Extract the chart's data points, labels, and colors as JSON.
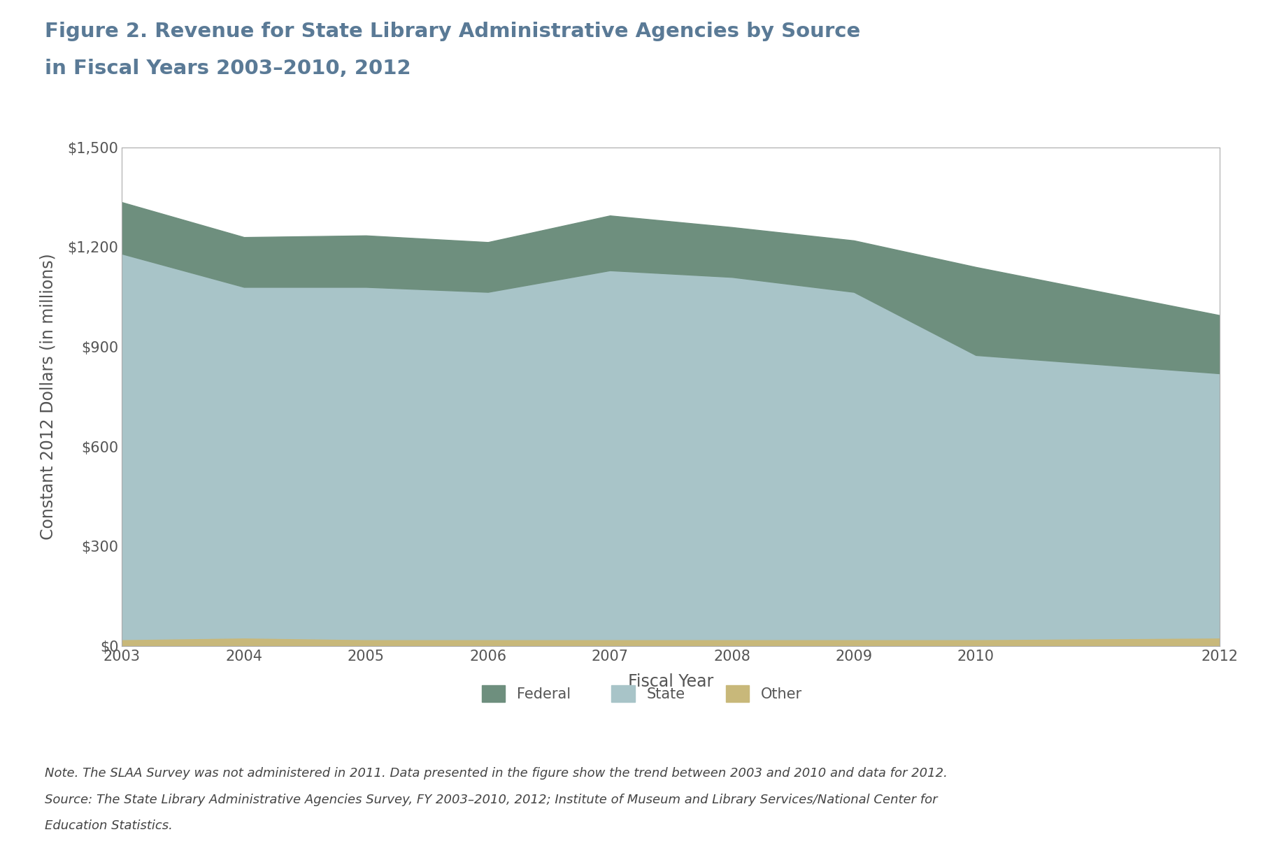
{
  "title_line1": "Figure 2. Revenue for State Library Administrative Agencies by Source",
  "title_line2": "in Fiscal Years 2003–2010, 2012",
  "title_color": "#5a7a96",
  "title_fontsize": 21,
  "xlabel": "Fiscal Year",
  "ylabel": "Constant 2012 Dollars (in millions)",
  "years": [
    2003,
    2004,
    2005,
    2006,
    2007,
    2008,
    2009,
    2010,
    2012
  ],
  "state": [
    1160,
    1055,
    1060,
    1045,
    1110,
    1090,
    1045,
    855,
    795
  ],
  "federal": [
    155,
    150,
    155,
    150,
    165,
    150,
    155,
    265,
    175
  ],
  "other": [
    20,
    25,
    20,
    20,
    20,
    20,
    20,
    20,
    25
  ],
  "state_color": "#a8c4c8",
  "federal_color": "#6e8f7e",
  "other_color": "#c8b87a",
  "ylim": [
    0,
    1500
  ],
  "yticks": [
    0,
    300,
    600,
    900,
    1200,
    1500
  ],
  "ytick_labels": [
    "$0",
    "$300",
    "$600",
    "$900",
    "$1,200",
    "$1,500"
  ],
  "legend_labels": [
    "Federal",
    "State",
    "Other"
  ],
  "note_line1": "Note. The SLAA Survey was not administered in 2011. Data presented in the figure show the trend between 2003 and 2010 and data for 2012.",
  "note_line2": "Source: The State Library Administrative Agencies Survey, FY 2003–2010, 2012; Institute of Museum and Library Services/National Center for",
  "note_line3": "Education Statistics.",
  "axis_color": "#aaaaaa",
  "tick_color": "#555555",
  "tick_fontsize": 15,
  "axis_label_fontsize": 17,
  "note_fontsize": 13,
  "background_color": "#ffffff"
}
